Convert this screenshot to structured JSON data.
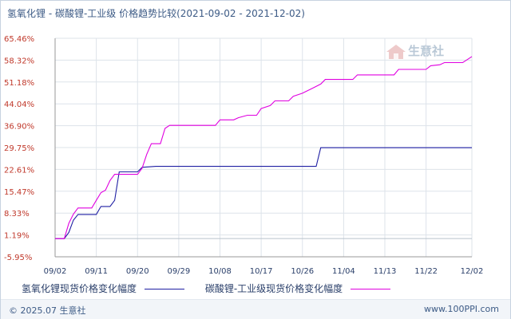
{
  "title": "氢氧化锂 - 碳酸锂-工业级 价格趋势比较(2021-09-02 - 2021-12-02)",
  "watermark": "生意社",
  "footer": {
    "copyright": "© 2025.07 生意社",
    "site": "www.100PPI.com"
  },
  "colors": {
    "series1": "#1f1fa3",
    "series2": "#e000e0",
    "grid": "#dde3ea",
    "axis": "#999999"
  },
  "chart_data": {
    "type": "line",
    "title": "氢氧化锂 - 碳酸锂-工业级 价格趋势比较(2021-09-02 - 2021-12-02)",
    "xlabel": "",
    "ylabel": "",
    "x_ticks": [
      "09/02",
      "09/11",
      "09/20",
      "09/29",
      "10/08",
      "10/17",
      "10/26",
      "11/04",
      "11/13",
      "11/22",
      "12/02"
    ],
    "y_ticks": [
      "65.46%",
      "58.32%",
      "51.18%",
      "44.04%",
      "36.90%",
      "29.75%",
      "22.61%",
      "15.47%",
      "8.33%",
      "1.19%",
      "-5.95%"
    ],
    "ylim": [
      -5.95,
      65.46
    ],
    "grid": true,
    "legend_position": "bottom",
    "series": [
      {
        "name": "氢氧化锂现货价格变化幅度",
        "color": "#1f1fa3",
        "points": [
          [
            "09/02",
            0.0
          ],
          [
            "09/03",
            0.0
          ],
          [
            "09/04",
            0.0
          ],
          [
            "09/05",
            2.0
          ],
          [
            "09/06",
            6.0
          ],
          [
            "09/07",
            7.9
          ],
          [
            "09/11",
            7.9
          ],
          [
            "09/12",
            10.5
          ],
          [
            "09/14",
            10.5
          ],
          [
            "09/15",
            12.5
          ],
          [
            "09/16",
            21.8
          ],
          [
            "09/20",
            21.8
          ],
          [
            "09/21",
            23.3
          ],
          [
            "09/24",
            23.6
          ],
          [
            "10/29",
            23.6
          ],
          [
            "10/30",
            29.7
          ],
          [
            "12/02",
            29.7
          ]
        ]
      },
      {
        "name": "碳酸锂-工业级现货价格变化幅度",
        "color": "#e000e0",
        "points": [
          [
            "09/02",
            0.0
          ],
          [
            "09/04",
            0.0
          ],
          [
            "09/05",
            5.0
          ],
          [
            "09/06",
            8.0
          ],
          [
            "09/07",
            10.0
          ],
          [
            "09/10",
            10.0
          ],
          [
            "09/11",
            12.5
          ],
          [
            "09/12",
            15.0
          ],
          [
            "09/13",
            15.8
          ],
          [
            "09/14",
            19.0
          ],
          [
            "09/15",
            21.0
          ],
          [
            "09/20",
            21.0
          ],
          [
            "09/21",
            23.0
          ],
          [
            "09/22",
            27.5
          ],
          [
            "09/23",
            31.0
          ],
          [
            "09/25",
            31.0
          ],
          [
            "09/26",
            36.0
          ],
          [
            "09/27",
            37.0
          ],
          [
            "10/07",
            37.0
          ],
          [
            "10/08",
            38.8
          ],
          [
            "10/11",
            38.8
          ],
          [
            "10/12",
            39.5
          ],
          [
            "10/14",
            40.3
          ],
          [
            "10/16",
            40.3
          ],
          [
            "10/17",
            42.5
          ],
          [
            "10/19",
            43.5
          ],
          [
            "10/20",
            45.0
          ],
          [
            "10/23",
            45.0
          ],
          [
            "10/24",
            46.5
          ],
          [
            "10/26",
            47.5
          ],
          [
            "10/28",
            49.0
          ],
          [
            "10/30",
            50.5
          ],
          [
            "10/31",
            52.0
          ],
          [
            "11/06",
            52.0
          ],
          [
            "11/07",
            53.5
          ],
          [
            "11/15",
            53.5
          ],
          [
            "11/16",
            55.3
          ],
          [
            "11/22",
            55.3
          ],
          [
            "11/23",
            56.5
          ],
          [
            "11/25",
            56.8
          ],
          [
            "11/26",
            57.5
          ],
          [
            "11/30",
            57.5
          ],
          [
            "12/01",
            58.5
          ],
          [
            "12/02",
            59.5
          ]
        ]
      }
    ]
  }
}
